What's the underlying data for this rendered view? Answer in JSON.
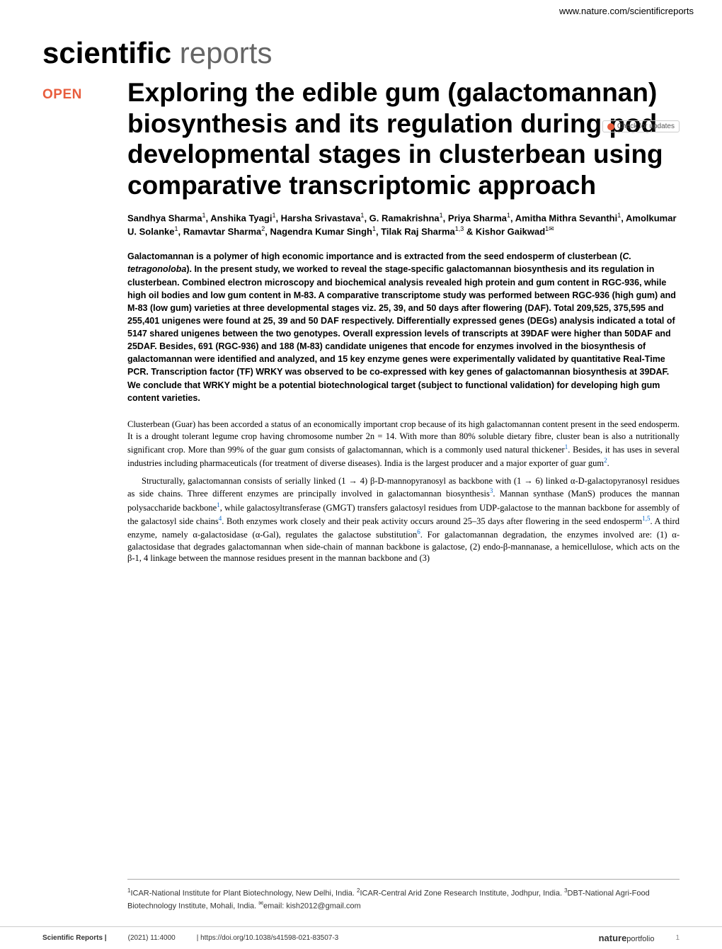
{
  "header": {
    "website": "www.nature.com/scientificreports"
  },
  "journal_logo": {
    "bold": "scientific",
    "light": " reports"
  },
  "check_updates": "Check for updates",
  "open_label": "OPEN",
  "title": "Exploring the edible gum (galactomannan) biosynthesis and its regulation during pod developmental stages in clusterbean using comparative transcriptomic approach",
  "authors_html": "Sandhya Sharma<sup>1</sup>, Anshika Tyagi<sup>1</sup>, Harsha Srivastava<sup>1</sup>, G. Ramakrishna<sup>1</sup>, Priya Sharma<sup>1</sup>, Amitha Mithra Sevanthi<sup>1</sup>, Amolkumar U. Solanke<sup>1</sup>, Ramavtar Sharma<sup>2</sup>, Nagendra Kumar Singh<sup>1</sup>, Tilak Raj Sharma<sup>1,3</sup> & Kishor Gaikwad<sup>1✉</sup>",
  "abstract_html": "Galactomannan is a polymer of high economic importance and is extracted from the seed endosperm of clusterbean (<span class=\"italic\">C. tetragonoloba</span>). In the present study, we worked to reveal the stage-specific galactomannan biosynthesis and its regulation in clusterbean. Combined electron microscopy and biochemical analysis revealed high protein and gum content in RGC-936, while high oil bodies and low gum content in M-83. A comparative transcriptome study was performed between RGC-936 (high gum) and M-83 (low gum) varieties at three developmental stages viz. 25, 39, and 50 days after flowering (DAF). Total 209,525, 375,595 and 255,401 unigenes were found at 25, 39 and 50 DAF respectively. Differentially expressed genes (DEGs) analysis indicated a total of 5147 shared unigenes between the two genotypes. Overall expression levels of transcripts at 39DAF were higher than 50DAF and 25DAF. Besides, 691 (RGC-936) and 188 (M-83) candidate unigenes that encode for enzymes involved in the biosynthesis of galactomannan were identified and analyzed, and 15 key enzyme genes were experimentally validated by quantitative Real-Time PCR. Transcription factor (TF) WRKY was observed to be co-expressed with key genes of galactomannan biosynthesis at 39DAF. We conclude that WRKY might be a potential biotechnological target (subject to functional validation) for developing high gum content varieties.",
  "body_para1": "Clusterbean (Guar) has been accorded a status of an economically important crop because of its high galactomannan content present in the seed endosperm. It is a drought tolerant legume crop having chromosome number 2n = 14. With more than 80% soluble dietary fibre, cluster bean is also a nutritionally significant crop. More than 99% of the guar gum consists of galactomannan, which is a commonly used natural thickener",
  "body_para1_end": ". Besides, it has uses in several industries including pharmaceuticals (for treatment of diverse diseases). India is the largest producer and a major exporter of guar gum",
  "body_para2_start": "Structurally, galactomannan consists of serially linked (1 → 4) β-D-mannopyranosyl as backbone with (1 → 6) linked α-D-galactopyranosyl residues as side chains. Three different enzymes are principally involved in galactomannan biosynthesis",
  "body_para2_mid1": ". Mannan synthase (ManS) produces the mannan polysaccharide backbone",
  "body_para2_mid2": ", while galactosyltransferase (GMGT) transfers galactosyl residues from UDP-galactose to the mannan backbone for assembly of the galactosyl side chains",
  "body_para2_mid3": ". Both enzymes work closely and their peak activity occurs around 25–35 days after flowering in the seed endosperm",
  "body_para2_mid4": ". A third enzyme, namely α-galactosidase (α-Gal), regulates the galactose substitution",
  "body_para2_end": ". For galactomannan degradation, the enzymes involved are: (1) α-galactosidase that degrades galactomannan when side-chain of mannan backbone is galactose, (2) endo-β-mannanase, a hemicellulose, which acts on the β-1, 4 linkage between the mannose residues present in the mannan backbone and (3)",
  "refs": {
    "r1": "1",
    "r2": "2",
    "r3": "3",
    "r4": "4",
    "r15": "1,5",
    "r6": "6"
  },
  "affiliations_html": "<sup>1</sup>ICAR-National Institute for Plant Biotechnology, New Delhi, India. <sup>2</sup>ICAR-Central Arid Zone Research Institute, Jodhpur, India. <sup>3</sup>DBT-National Agri-Food Biotechnology Institute, Mohali, India. <sup>✉</sup>email: kish2012@gmail.com",
  "footer": {
    "journal": "Scientific Reports |",
    "citation": "(2021) 11:4000",
    "doi": "| https://doi.org/10.1038/s41598-021-83507-3",
    "nature_bold": "nature",
    "nature_light": "portfolio",
    "page": "1"
  },
  "colors": {
    "accent": "#e85d3d",
    "link": "#0066cc",
    "text": "#000000",
    "muted": "#666666"
  },
  "typography": {
    "title_fontsize": 37,
    "title_weight": 700,
    "abstract_fontsize": 12.5,
    "body_fontsize": 12.5,
    "authors_fontsize": 13
  }
}
